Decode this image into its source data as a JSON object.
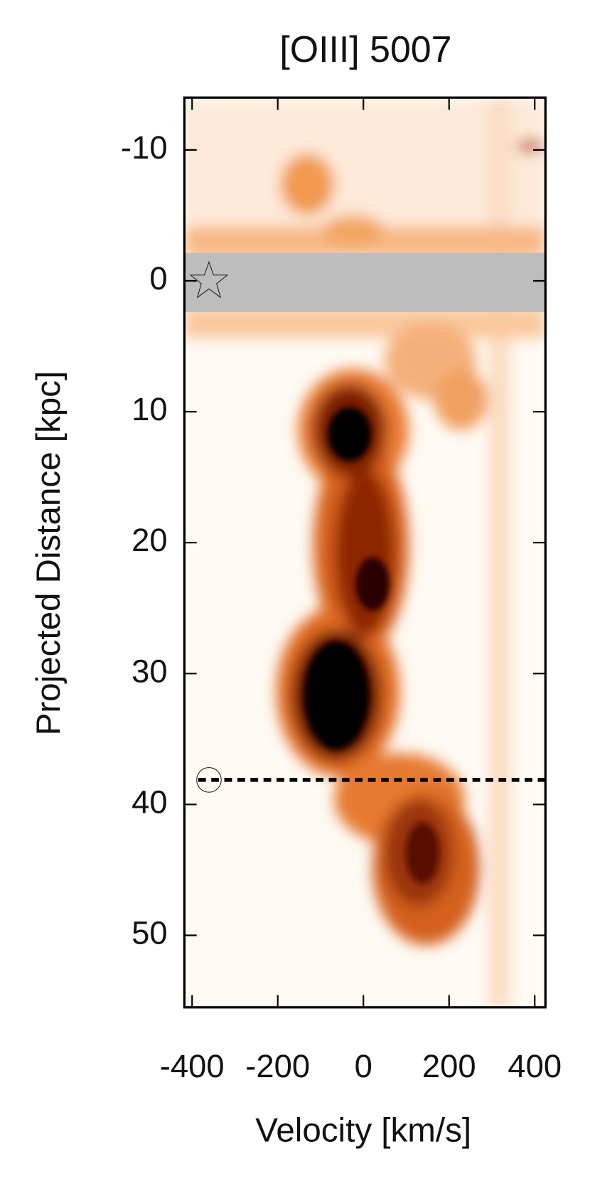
{
  "chart_data": {
    "type": "heatmap",
    "title": "[OIII] 5007",
    "x_label": "Velocity [km/s]",
    "y_label": "Projected Distance [kpc]",
    "xlim": [
      -418,
      425
    ],
    "ylim": [
      -14,
      55.5
    ],
    "y_inverted": true,
    "xticks": [
      -400,
      -200,
      0,
      200,
      400
    ],
    "yticks": [
      -10,
      0,
      10,
      20,
      30,
      40,
      50
    ]
  }
}
